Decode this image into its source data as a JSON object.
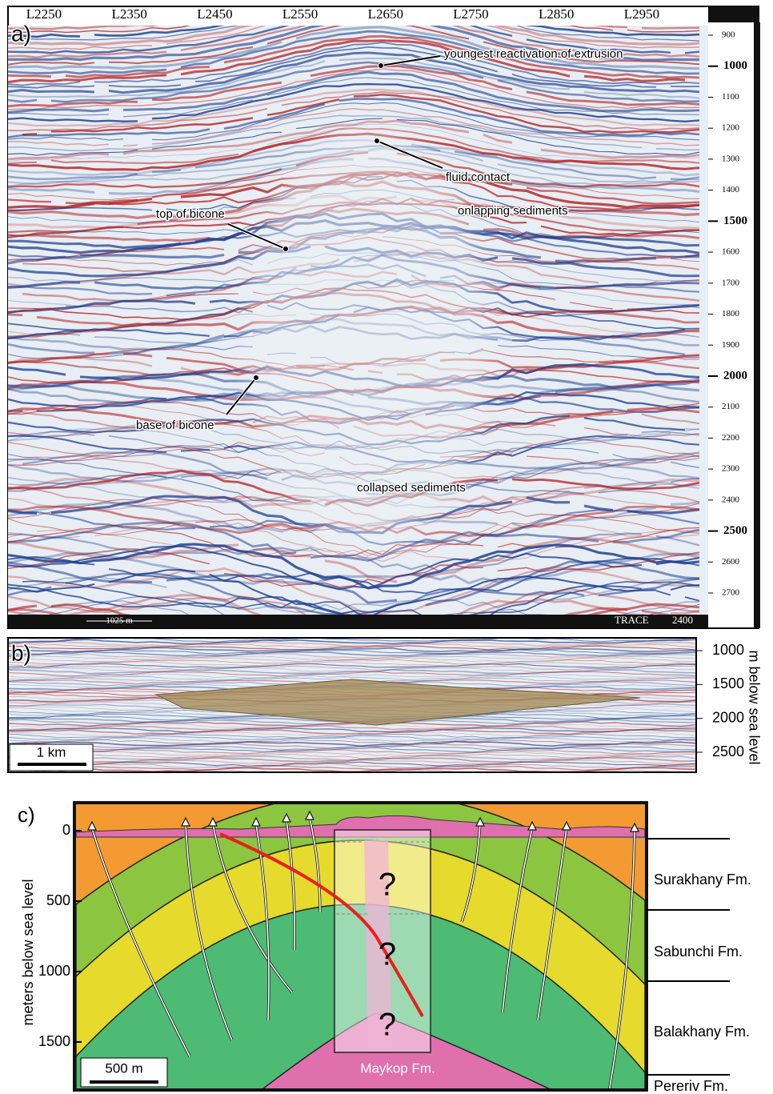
{
  "panel_a": {
    "label": "a)",
    "top_labels": [
      "L2250",
      "L2350",
      "L2450",
      "L2550",
      "L2650",
      "L2750",
      "L2850",
      "L2950"
    ],
    "depth_ticks": [
      900,
      1000,
      1100,
      1200,
      1300,
      1400,
      1500,
      1600,
      1700,
      1800,
      1900,
      2000,
      2100,
      2200,
      2300,
      2400,
      2500,
      2600,
      2700
    ],
    "scale_bar": "1025 m",
    "trace_label": "TRACE",
    "trace_value": 2400,
    "annotations": [
      "youngest reactivation of extrusion",
      "fluid contact",
      "top of bicone",
      "onlapping sediments",
      "base of bicone",
      "collapsed sediments"
    ]
  },
  "panel_b": {
    "label": "b)",
    "scale_bar": "1 km",
    "axis_title": "m below sea level",
    "ticks": [
      1000,
      1500,
      2000,
      2500
    ]
  },
  "panel_c": {
    "label": "c)",
    "axis_title": "meters below sea level",
    "ticks": [
      0,
      500,
      1000,
      1500
    ],
    "scale_bar": "500 m",
    "formations": [
      "Surakhany Fm.",
      "Sabunchi Fm.",
      "Balakhany Fm.",
      "Pereriv Fm."
    ],
    "core_label": "Maykop Fm.",
    "question_marks": [
      "?",
      "?",
      "?"
    ]
  }
}
